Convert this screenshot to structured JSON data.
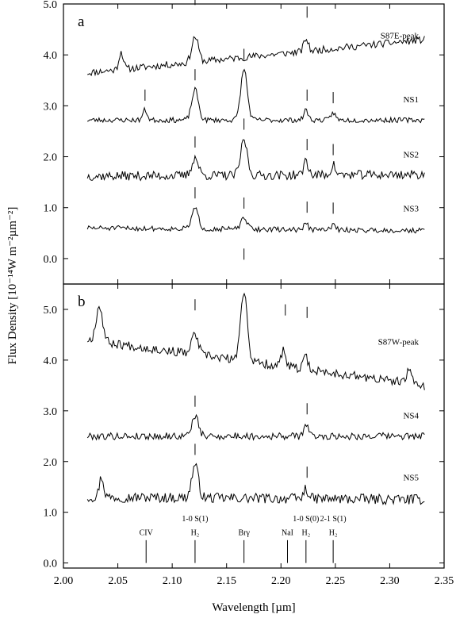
{
  "chart_data": {
    "type": "line",
    "xlabel": "Wavelength [µm]",
    "ylabel": "Flux Density [10⁻¹⁴W m⁻²µm⁻²]",
    "xlim": [
      2.0,
      2.35
    ],
    "x_ticks": [
      "2.00",
      "2.05",
      "2.10",
      "2.15",
      "2.20",
      "2.25",
      "2.30",
      "2.35"
    ],
    "x_tick_values": [
      2.0,
      2.05,
      2.1,
      2.15,
      2.2,
      2.25,
      2.3,
      2.35
    ],
    "x_range_data": [
      2.022,
      2.332
    ],
    "line_color": "#000000",
    "panels": [
      {
        "letter": "a",
        "ylim": [
          -0.5,
          5.0
        ],
        "y_ticks": [
          "0.0",
          "1.0",
          "2.0",
          "3.0",
          "4.0",
          "5.0"
        ],
        "y_tick_values": [
          0,
          1,
          2,
          3,
          4,
          5
        ],
        "series": [
          {
            "name": "S87E-peak",
            "baseline_start": 3.65,
            "baseline_end": 4.3,
            "noise": 0.07,
            "seed": 11,
            "peaks": [
              {
                "x": 2.053,
                "height": 0.35,
                "width": 0.002
              },
              {
                "x": 2.121,
                "height": 0.5,
                "width": 0.003
              },
              {
                "x": 2.223,
                "height": 0.25,
                "width": 0.002
              }
            ],
            "markers": [
              2.121,
              2.224
            ]
          },
          {
            "name": "NS1",
            "baseline_start": 2.72,
            "baseline_end": 2.72,
            "noise": 0.05,
            "seed": 23,
            "peaks": [
              {
                "x": 2.075,
                "height": 0.2,
                "width": 0.002
              },
              {
                "x": 2.121,
                "height": 0.6,
                "width": 0.003
              },
              {
                "x": 2.166,
                "height": 1.0,
                "width": 0.003
              },
              {
                "x": 2.223,
                "height": 0.2,
                "width": 0.002
              },
              {
                "x": 2.248,
                "height": 0.15,
                "width": 0.002
              }
            ],
            "markers": [
              2.075,
              2.121,
              2.166,
              2.224,
              2.248
            ]
          },
          {
            "name": "NS2",
            "baseline_start": 1.62,
            "baseline_end": 1.65,
            "noise": 0.09,
            "seed": 37,
            "peaks": [
              {
                "x": 2.121,
                "height": 0.35,
                "width": 0.003
              },
              {
                "x": 2.166,
                "height": 0.7,
                "width": 0.003
              },
              {
                "x": 2.223,
                "height": 0.3,
                "width": 0.002
              },
              {
                "x": 2.248,
                "height": 0.2,
                "width": 0.002
              }
            ],
            "markers": [
              2.121,
              2.166,
              2.224,
              2.248
            ]
          },
          {
            "name": "NS3",
            "baseline_start": 0.6,
            "baseline_end": 0.55,
            "noise": 0.05,
            "seed": 51,
            "peaks": [
              {
                "x": 2.121,
                "height": 0.4,
                "width": 0.003
              },
              {
                "x": 2.166,
                "height": 0.2,
                "width": 0.003
              },
              {
                "x": 2.223,
                "height": 0.12,
                "width": 0.002
              },
              {
                "x": 2.248,
                "height": 0.1,
                "width": 0.002
              }
            ],
            "markers": [
              2.121,
              2.166,
              2.224,
              2.248
            ]
          }
        ]
      },
      {
        "letter": "b",
        "ylim": [
          -0.1,
          5.5
        ],
        "y_ticks": [
          "0.0",
          "1.0",
          "2.0",
          "3.0",
          "4.0",
          "5.0"
        ],
        "y_tick_values": [
          0,
          1,
          2,
          3,
          4,
          5
        ],
        "series": [
          {
            "name": "S87W-peak",
            "baseline_start": 4.4,
            "baseline_end": 3.5,
            "noise": 0.09,
            "seed": 67,
            "peaks": [
              {
                "x": 2.033,
                "height": 0.7,
                "width": 0.003
              },
              {
                "x": 2.121,
                "height": 0.4,
                "width": 0.003
              },
              {
                "x": 2.166,
                "height": 1.4,
                "width": 0.003
              },
              {
                "x": 2.202,
                "height": 0.3,
                "width": 0.002
              },
              {
                "x": 2.223,
                "height": 0.25,
                "width": 0.002
              },
              {
                "x": 2.318,
                "height": 0.3,
                "width": 0.002
              }
            ],
            "markers": [
              2.121,
              2.166,
              2.204,
              2.224
            ]
          },
          {
            "name": "NS4",
            "baseline_start": 2.5,
            "baseline_end": 2.5,
            "noise": 0.07,
            "seed": 79,
            "peaks": [
              {
                "x": 2.121,
                "height": 0.4,
                "width": 0.003
              },
              {
                "x": 2.223,
                "height": 0.25,
                "width": 0.002
              }
            ],
            "markers": [
              2.121,
              2.224
            ]
          },
          {
            "name": "NS5",
            "baseline_start": 1.3,
            "baseline_end": 1.25,
            "noise": 0.1,
            "seed": 97,
            "peaks": [
              {
                "x": 2.035,
                "height": 0.4,
                "width": 0.002
              },
              {
                "x": 2.121,
                "height": 0.65,
                "width": 0.003
              },
              {
                "x": 2.223,
                "height": 0.2,
                "width": 0.002
              }
            ],
            "markers": [
              2.121,
              2.224
            ]
          }
        ],
        "line_ids": [
          {
            "x": 2.076,
            "label1": "CIV",
            "label2": ""
          },
          {
            "x": 2.121,
            "label1": "1-0 S(1)",
            "label2": "H₂"
          },
          {
            "x": 2.166,
            "label1": "Brγ",
            "label2": ""
          },
          {
            "x": 2.206,
            "label1": "NaI",
            "label2": ""
          },
          {
            "x": 2.223,
            "label1": "1-0 S(0)",
            "label2": "H₂"
          },
          {
            "x": 2.248,
            "label1": "2-1 S(1)",
            "label2": "H₂"
          }
        ]
      }
    ]
  }
}
